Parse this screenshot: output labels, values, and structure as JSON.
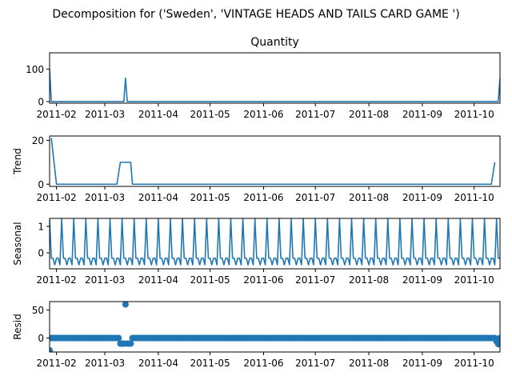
{
  "suptitle": "Decomposition for ('Sweden', 'VINTAGE HEADS AND TAILS CARD GAME ')",
  "colors": {
    "series": "#1f77b4",
    "axes": "#000000",
    "background": "#ffffff"
  },
  "x_tick_labels": [
    "2011-02",
    "2011-03",
    "2011-04",
    "2011-05",
    "2011-06",
    "2011-07",
    "2011-08",
    "2011-09",
    "2011-10"
  ],
  "chart_data": [
    {
      "type": "line",
      "title": "Quantity",
      "ylabel": "",
      "ylim": [
        -5,
        150
      ],
      "yticks": [
        0,
        100
      ],
      "x": [
        "2011-01-28",
        "2011-10-16"
      ],
      "points": [
        [
          "2011-01-28",
          100
        ],
        [
          "2011-01-29",
          0
        ],
        [
          "2011-03-12",
          0
        ],
        [
          "2011-03-13",
          72
        ],
        [
          "2011-03-14",
          0
        ],
        [
          "2011-10-15",
          0
        ],
        [
          "2011-10-16",
          72
        ]
      ]
    },
    {
      "type": "line",
      "title": "",
      "ylabel": "Trend",
      "ylim": [
        -1,
        22
      ],
      "yticks": [
        0,
        20
      ],
      "points": [
        [
          "2011-01-29",
          21
        ],
        [
          "2011-02-01",
          0
        ],
        [
          "2011-03-08",
          0
        ],
        [
          "2011-03-10",
          10
        ],
        [
          "2011-03-16",
          10
        ],
        [
          "2011-03-17",
          0
        ],
        [
          "2011-10-11",
          0
        ],
        [
          "2011-10-13",
          10
        ]
      ]
    },
    {
      "type": "line",
      "title": "",
      "ylabel": "Seasonal",
      "ylim": [
        -0.6,
        1.3
      ],
      "yticks": [
        0,
        1
      ],
      "period_days": 7,
      "cycle_values": [
        1.28,
        -0.2,
        -0.2,
        -0.45,
        -0.2,
        -0.2,
        -0.45
      ],
      "cycle_start": "2011-01-28",
      "end": "2011-10-16"
    },
    {
      "type": "scatter",
      "title": "",
      "ylabel": "Resid",
      "ylim": [
        -25,
        65
      ],
      "yticks": [
        0,
        50
      ],
      "baseline": 0,
      "start": "2011-01-28",
      "end": "2011-10-16",
      "outliers": [
        [
          "2011-01-28",
          -22
        ],
        [
          "2011-03-10",
          -10
        ],
        [
          "2011-03-11",
          -10
        ],
        [
          "2011-03-12",
          -10
        ],
        [
          "2011-03-13",
          60
        ],
        [
          "2011-03-14",
          -10
        ],
        [
          "2011-03-15",
          -10
        ],
        [
          "2011-03-16",
          -10
        ],
        [
          "2011-10-14",
          -6
        ],
        [
          "2011-10-15",
          -11
        ]
      ]
    }
  ]
}
